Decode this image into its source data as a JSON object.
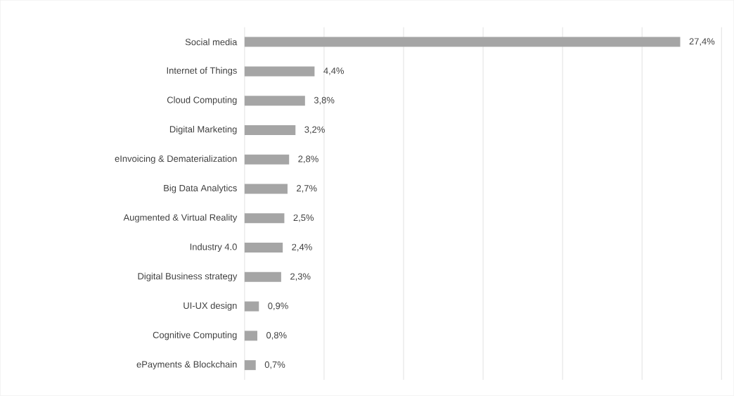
{
  "chart_data": {
    "type": "bar",
    "orientation": "horizontal",
    "categories": [
      "Social media",
      "Internet of Things",
      "Cloud Computing",
      "Digital Marketing",
      "eInvoicing & Dematerialization",
      "Big Data Analytics",
      "Augmented & Virtual Reality",
      "Industry 4.0",
      "Digital Business strategy",
      "UI-UX design",
      "Cognitive Computing",
      "ePayments & Blockchain"
    ],
    "values": [
      27.4,
      4.4,
      3.8,
      3.2,
      2.8,
      2.7,
      2.5,
      2.4,
      2.3,
      0.9,
      0.8,
      0.7
    ],
    "value_labels": [
      "27,4%",
      "4,4%",
      "3,8%",
      "3,2%",
      "2,8%",
      "2,7%",
      "2,5%",
      "2,4%",
      "2,3%",
      "0,9%",
      "0,8%",
      "0,7%"
    ],
    "color": "#a5a5a5",
    "xlim": [
      0,
      30
    ],
    "xticks": [
      {
        "value": 0,
        "label": null
      },
      {
        "value": 5,
        "label": null
      },
      {
        "value": 10,
        "label": null
      },
      {
        "value": 15,
        "label": null
      },
      {
        "value": 20,
        "label": null
      },
      {
        "value": 25,
        "label": null
      },
      {
        "value": 30,
        "label": null
      }
    ],
    "grid": "x",
    "tick_labels": "y"
  }
}
